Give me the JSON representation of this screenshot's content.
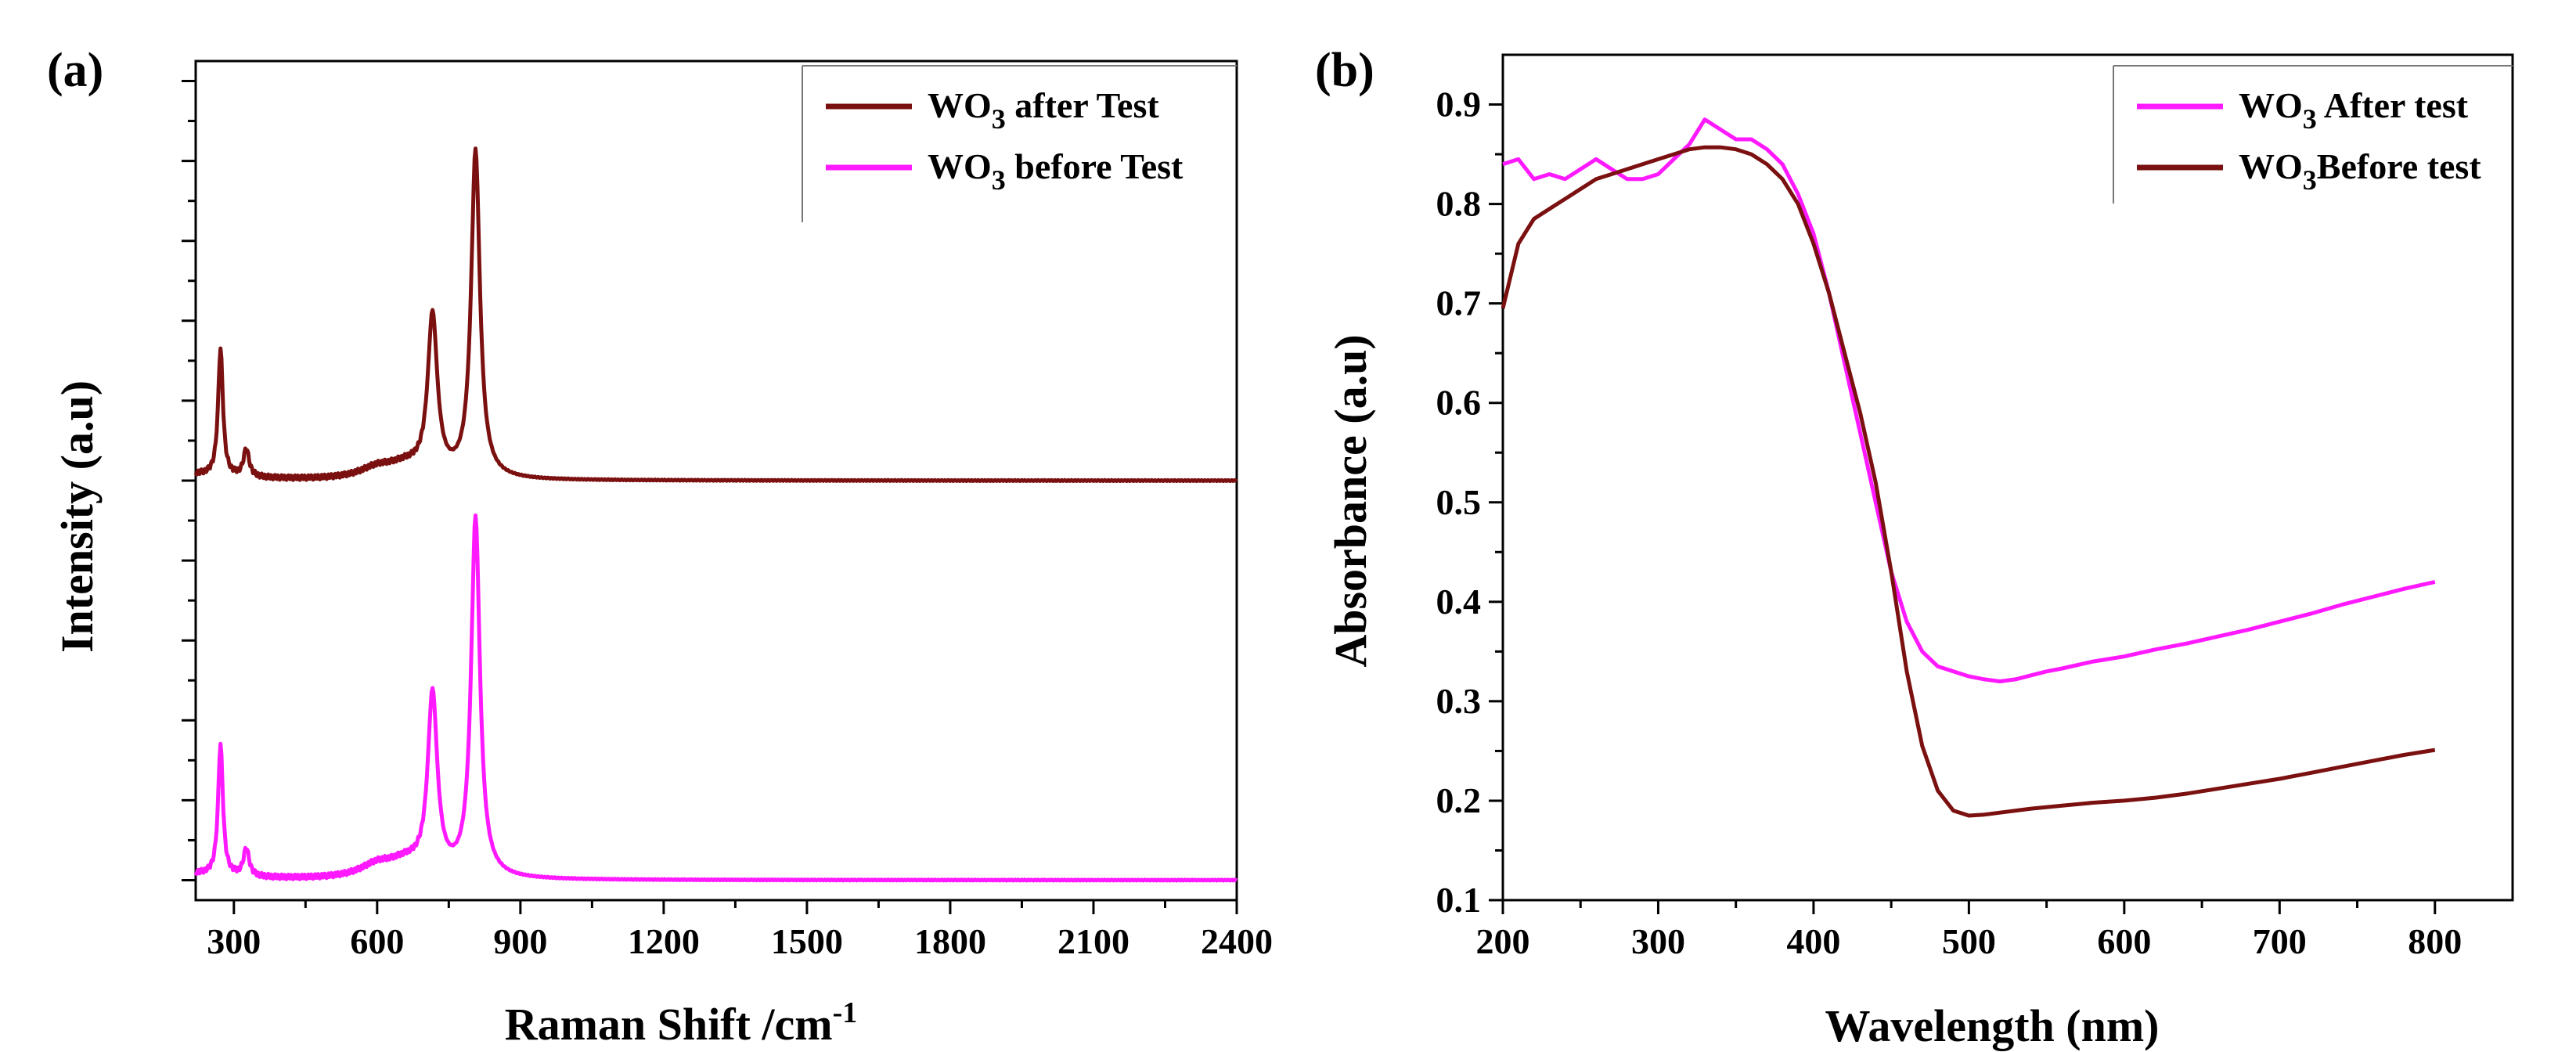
{
  "chart_data": [
    {
      "type": "line",
      "panel_label": "(a)",
      "xlabel": "Raman Shift /cm",
      "xlabel_sup": "-1",
      "ylabel": "Intensity (a.u)",
      "xlim": [
        220,
        2400
      ],
      "ylim": [
        -0.05,
        2.05
      ],
      "xticks": [
        300,
        600,
        900,
        1200,
        1500,
        1800,
        2100,
        2400
      ],
      "yticks_labeled": false,
      "legend_position": "top-right",
      "series": [
        {
          "name": "WO3 after Test",
          "label_main": "WO",
          "label_sub": "3",
          "label_rest": " after Test",
          "color": "#7B1010",
          "offset": 1.0,
          "peaks": [
            {
              "center": 272,
              "height": 0.32,
              "width": 6
            },
            {
              "center": 326,
              "height": 0.07,
              "width": 7
            },
            {
              "center": 600,
              "height": 0.025,
              "width": 45
            },
            {
              "center": 660,
              "height": 0.03,
              "width": 45
            },
            {
              "center": 716,
              "height": 0.4,
              "width": 12
            },
            {
              "center": 806,
              "height": 0.82,
              "width": 11
            }
          ]
        },
        {
          "name": "WO3 before Test",
          "label_main": "WO",
          "label_sub": "3",
          "label_rest": " before Test",
          "color": "#FF19FF",
          "offset": 0.0,
          "peaks": [
            {
              "center": 272,
              "height": 0.33,
              "width": 6
            },
            {
              "center": 326,
              "height": 0.07,
              "width": 7
            },
            {
              "center": 600,
              "height": 0.03,
              "width": 45
            },
            {
              "center": 660,
              "height": 0.035,
              "width": 45
            },
            {
              "center": 716,
              "height": 0.45,
              "width": 12
            },
            {
              "center": 806,
              "height": 0.9,
              "width": 11
            }
          ]
        }
      ]
    },
    {
      "type": "line",
      "panel_label": "(b)",
      "xlabel": "Wavelength (nm)",
      "ylabel": "Absorbance (a.u)",
      "xlim": [
        200,
        850
      ],
      "ylim": [
        0.1,
        0.95
      ],
      "xticks": [
        200,
        300,
        400,
        500,
        600,
        700,
        800
      ],
      "yticks": [
        0.1,
        0.2,
        0.3,
        0.4,
        0.5,
        0.6,
        0.7,
        0.8,
        0.9
      ],
      "legend_position": "top-right",
      "series": [
        {
          "name": "WO3 After test",
          "label_main": "WO",
          "label_sub": "3",
          "label_rest": " After test",
          "color": "#FF19FF",
          "x": [
            200,
            210,
            220,
            230,
            240,
            250,
            260,
            270,
            280,
            290,
            300,
            310,
            320,
            330,
            340,
            350,
            360,
            370,
            380,
            390,
            400,
            410,
            420,
            430,
            440,
            450,
            460,
            470,
            480,
            490,
            500,
            510,
            520,
            530,
            540,
            550,
            560,
            580,
            600,
            620,
            640,
            660,
            680,
            700,
            720,
            740,
            760,
            780,
            800
          ],
          "y": [
            0.84,
            0.845,
            0.825,
            0.83,
            0.825,
            0.835,
            0.845,
            0.835,
            0.825,
            0.825,
            0.83,
            0.845,
            0.86,
            0.885,
            0.875,
            0.865,
            0.865,
            0.855,
            0.84,
            0.81,
            0.77,
            0.71,
            0.64,
            0.57,
            0.5,
            0.43,
            0.38,
            0.35,
            0.335,
            0.33,
            0.325,
            0.322,
            0.32,
            0.322,
            0.326,
            0.33,
            0.333,
            0.34,
            0.345,
            0.352,
            0.358,
            0.365,
            0.372,
            0.38,
            0.388,
            0.397,
            0.405,
            0.413,
            0.42
          ]
        },
        {
          "name": "WO3Before test",
          "label_main": "WO",
          "label_sub": "3",
          "label_rest": "Before test",
          "color": "#7B1010",
          "x": [
            200,
            210,
            220,
            230,
            240,
            250,
            260,
            270,
            280,
            290,
            300,
            310,
            320,
            330,
            340,
            350,
            360,
            370,
            380,
            390,
            400,
            410,
            420,
            430,
            440,
            450,
            460,
            470,
            480,
            490,
            500,
            510,
            520,
            540,
            560,
            580,
            600,
            620,
            640,
            660,
            680,
            700,
            720,
            740,
            760,
            780,
            800
          ],
          "y": [
            0.695,
            0.76,
            0.785,
            0.795,
            0.805,
            0.815,
            0.825,
            0.83,
            0.835,
            0.84,
            0.845,
            0.85,
            0.855,
            0.857,
            0.857,
            0.855,
            0.85,
            0.84,
            0.825,
            0.8,
            0.76,
            0.71,
            0.65,
            0.59,
            0.52,
            0.43,
            0.33,
            0.255,
            0.21,
            0.19,
            0.185,
            0.186,
            0.188,
            0.192,
            0.195,
            0.198,
            0.2,
            0.203,
            0.207,
            0.212,
            0.217,
            0.222,
            0.228,
            0.234,
            0.24,
            0.246,
            0.251
          ]
        }
      ]
    }
  ]
}
